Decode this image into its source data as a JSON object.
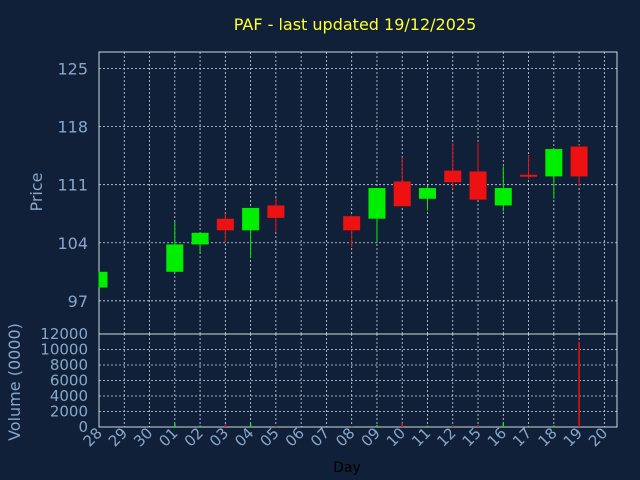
{
  "chart_data": {
    "type": "candlestick",
    "title": "PAF - last updated 19/12/2025",
    "xlabel": "Day",
    "price_panel": {
      "ylabel": "Price",
      "yticks": [
        97,
        104,
        111,
        118,
        125
      ],
      "ylim": [
        93,
        127
      ],
      "grid": true
    },
    "volume_panel": {
      "ylabel": "Volume (0000)",
      "yticks": [
        0,
        2000,
        4000,
        6000,
        8000,
        10000,
        12000
      ],
      "ylim": [
        0,
        12000
      ],
      "grid": true
    },
    "categories": [
      "28",
      "29",
      "30",
      "01",
      "02",
      "03",
      "04",
      "05",
      "06",
      "07",
      "08",
      "09",
      "10",
      "11",
      "12",
      "15",
      "16",
      "17",
      "18",
      "19",
      "20"
    ],
    "candles": [
      {
        "day": "28",
        "open": 98.6,
        "close": 100.5,
        "high": 100.5,
        "low": 98.6
      },
      {
        "day": "01",
        "open": 100.5,
        "close": 103.8,
        "high": 106.5,
        "low": 100.5
      },
      {
        "day": "02",
        "open": 103.8,
        "close": 105.2,
        "high": 105.2,
        "low": 102.9
      },
      {
        "day": "03",
        "open": 106.9,
        "close": 105.5,
        "high": 107.5,
        "low": 104.1
      },
      {
        "day": "04",
        "open": 105.5,
        "close": 108.2,
        "high": 108.2,
        "low": 102.2
      },
      {
        "day": "05",
        "open": 108.5,
        "close": 107.0,
        "high": 109.4,
        "low": 105.3
      },
      {
        "day": "08",
        "open": 107.2,
        "close": 105.5,
        "high": 107.3,
        "low": 103.5
      },
      {
        "day": "09",
        "open": 106.9,
        "close": 110.6,
        "high": 110.6,
        "low": 104.0
      },
      {
        "day": "10",
        "open": 111.4,
        "close": 108.4,
        "high": 114.3,
        "low": 108.4
      },
      {
        "day": "11",
        "open": 109.3,
        "close": 110.6,
        "high": 110.9,
        "low": 107.9
      },
      {
        "day": "12",
        "open": 112.7,
        "close": 111.3,
        "high": 116.0,
        "low": 110.5
      },
      {
        "day": "15",
        "open": 112.6,
        "close": 109.2,
        "high": 116.0,
        "low": 109.2
      },
      {
        "day": "16",
        "open": 108.5,
        "close": 110.6,
        "high": 113.2,
        "low": 107.8
      },
      {
        "day": "17",
        "open": 112.2,
        "close": 112.0,
        "high": 114.6,
        "low": 111.7
      },
      {
        "day": "18",
        "open": 112.0,
        "close": 115.3,
        "high": 115.3,
        "low": 109.3
      },
      {
        "day": "19",
        "open": 115.6,
        "close": 112.0,
        "high": 115.8,
        "low": 110.8
      }
    ],
    "volumes": [
      {
        "day": "28",
        "value": 20,
        "rise": true
      },
      {
        "day": "01",
        "value": 400,
        "rise": true
      },
      {
        "day": "02",
        "value": 200,
        "rise": true
      },
      {
        "day": "03",
        "value": 300,
        "rise": false
      },
      {
        "day": "04",
        "value": 450,
        "rise": true
      },
      {
        "day": "05",
        "value": 150,
        "rise": false
      },
      {
        "day": "08",
        "value": 150,
        "rise": false
      },
      {
        "day": "09",
        "value": 250,
        "rise": true
      },
      {
        "day": "10",
        "value": 500,
        "rise": false
      },
      {
        "day": "11",
        "value": 150,
        "rise": true
      },
      {
        "day": "12",
        "value": 200,
        "rise": false
      },
      {
        "day": "15",
        "value": 250,
        "rise": false
      },
      {
        "day": "16",
        "value": 450,
        "rise": true
      },
      {
        "day": "17",
        "value": 50,
        "rise": true
      },
      {
        "day": "18",
        "value": 200,
        "rise": true
      },
      {
        "day": "19",
        "value": 11000,
        "rise": false
      }
    ],
    "colors": {
      "background": "#0f2038",
      "up": "#00ee00",
      "down": "#ee1111",
      "grid": "#cfd8e3",
      "axis_text": "#8aa6c8",
      "title": "#ffff33",
      "xlabel": "#000000"
    }
  }
}
